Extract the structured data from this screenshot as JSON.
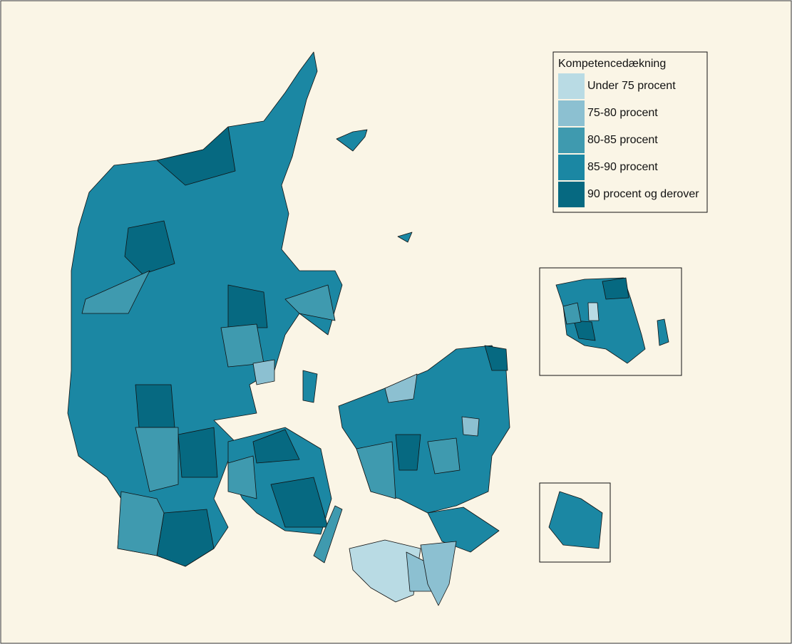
{
  "legend": {
    "title": "Kompetencedækning",
    "items": [
      {
        "label": "Under 75 procent",
        "color": "#b9dbe4"
      },
      {
        "label": "75-80 procent",
        "color": "#8cc0d1"
      },
      {
        "label": "80-85 procent",
        "color": "#3f9aaf"
      },
      {
        "label": "85-90 procent",
        "color": "#1b87a3"
      },
      {
        "label": "90 procent og derover",
        "color": "#066981"
      }
    ]
  }
}
